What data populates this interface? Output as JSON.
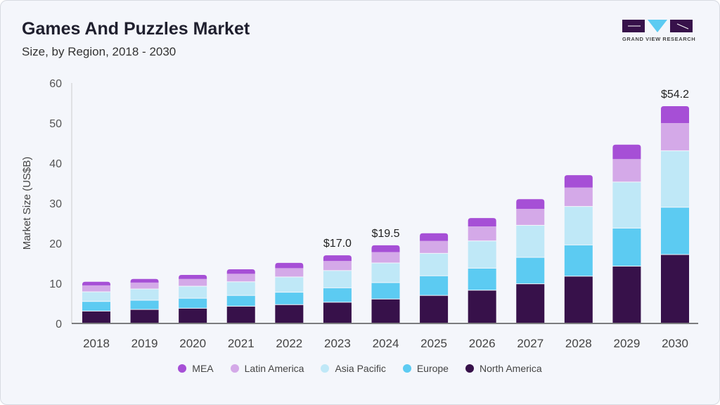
{
  "header": {
    "title": "Games And Puzzles Market",
    "subtitle": "Size, by Region, 2018 - 2030",
    "logo_text": "GRAND VIEW RESEARCH"
  },
  "chart_data": {
    "type": "bar",
    "stacked": true,
    "title": "Games And Puzzles Market",
    "subtitle": "Size, by Region, 2018 - 2030",
    "xlabel": "",
    "ylabel": "Market Size (US$B)",
    "ylim": [
      0,
      60
    ],
    "yticks": [
      0,
      10,
      20,
      30,
      40,
      50,
      60
    ],
    "grid": false,
    "legend_position": "bottom",
    "categories": [
      "2018",
      "2019",
      "2020",
      "2021",
      "2022",
      "2023",
      "2024",
      "2025",
      "2026",
      "2027",
      "2028",
      "2029",
      "2030"
    ],
    "series": [
      {
        "name": "North America",
        "color": "#37114a",
        "values": [
          3.0,
          3.4,
          3.7,
          4.2,
          4.6,
          5.2,
          6.0,
          6.9,
          8.2,
          9.8,
          11.7,
          14.2,
          17.1
        ]
      },
      {
        "name": "Europe",
        "color": "#5ccbf2",
        "values": [
          2.4,
          2.3,
          2.5,
          2.7,
          3.1,
          3.6,
          4.1,
          4.9,
          5.5,
          6.6,
          7.8,
          9.5,
          11.8
        ]
      },
      {
        "name": "Asia Pacific",
        "color": "#bfe8f7",
        "values": [
          2.4,
          2.8,
          3.0,
          3.4,
          3.8,
          4.3,
          4.9,
          5.6,
          6.8,
          8.0,
          9.6,
          11.5,
          14.1
        ]
      },
      {
        "name": "Latin America",
        "color": "#d4a9e8",
        "values": [
          1.7,
          1.7,
          1.9,
          2.1,
          2.3,
          2.5,
          2.8,
          3.2,
          3.7,
          4.2,
          4.8,
          5.8,
          7.0
        ]
      },
      {
        "name": "MEA",
        "color": "#a64fd6",
        "values": [
          0.9,
          0.9,
          1.0,
          1.1,
          1.3,
          1.4,
          1.7,
          1.9,
          2.1,
          2.4,
          3.1,
          3.6,
          4.2
        ]
      }
    ],
    "data_labels": [
      {
        "category": "2023",
        "text": "$17.0"
      },
      {
        "category": "2024",
        "text": "$19.5"
      },
      {
        "category": "2030",
        "text": "$54.2"
      }
    ],
    "legend_order": [
      "MEA",
      "Latin America",
      "Asia Pacific",
      "Europe",
      "North America"
    ]
  }
}
